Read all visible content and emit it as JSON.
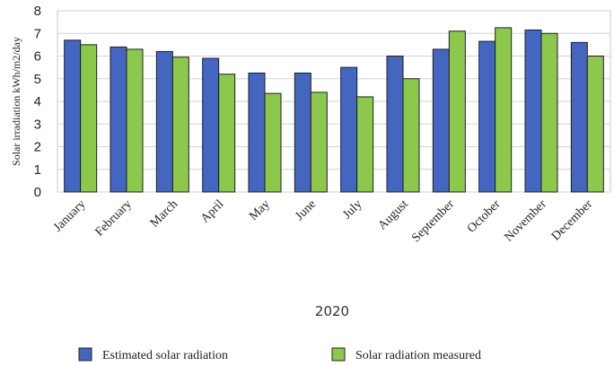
{
  "chart_data": {
    "type": "bar",
    "categories": [
      "January",
      "February",
      "March",
      "April",
      "May",
      "June",
      "July",
      "August",
      "September",
      "October",
      "November",
      "December"
    ],
    "series": [
      {
        "name": "Estimated solar radiation",
        "color": "#4466c0",
        "values": [
          6.7,
          6.4,
          6.2,
          5.9,
          5.25,
          5.25,
          5.5,
          6.0,
          6.3,
          6.65,
          7.15,
          6.6
        ]
      },
      {
        "name": "Solar radiation measured",
        "color": "#8cc84b",
        "values": [
          6.5,
          6.3,
          5.95,
          5.2,
          4.35,
          4.4,
          4.2,
          5.0,
          7.1,
          7.25,
          7.0,
          6.0
        ]
      }
    ],
    "title": "",
    "xlabel": "2020",
    "ylabel": "Solar irradiation kWh/m2/day",
    "ylim": [
      0,
      8
    ],
    "yticks": [
      0,
      1,
      2,
      3,
      4,
      5,
      6,
      7,
      8
    ],
    "grid": true,
    "legend": "bottom"
  }
}
